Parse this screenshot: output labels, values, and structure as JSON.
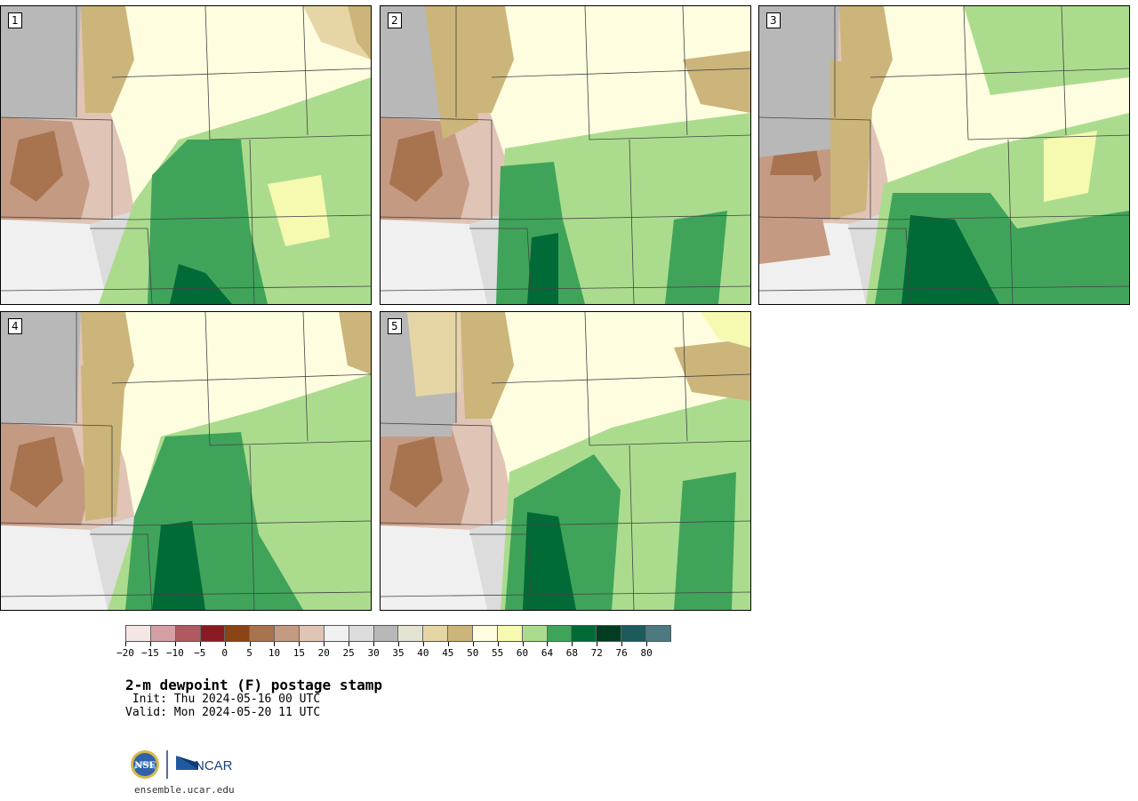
{
  "panels": [
    {
      "label": "1"
    },
    {
      "label": "2"
    },
    {
      "label": "3"
    },
    {
      "label": "4"
    },
    {
      "label": "5"
    }
  ],
  "colorbar": {
    "colors": [
      "#f5e6e6",
      "#d4a0a4",
      "#b05a60",
      "#8a1a22",
      "#8b4515",
      "#a8734f",
      "#c49a82",
      "#e0c4b6",
      "#f0f0f0",
      "#dcdcdc",
      "#b8b8b8",
      "#e4e2d0",
      "#e6d6a6",
      "#cbb57a",
      "#fefde0",
      "#f6f9b0",
      "#abdc8e",
      "#3fa45a",
      "#006b36",
      "#003d22",
      "#1d5a5a",
      "#4c7a80"
    ],
    "tick_labels": [
      "−20",
      "−15",
      "−10",
      "−5",
      "0",
      "5",
      "10",
      "15",
      "20",
      "25",
      "30",
      "35",
      "40",
      "45",
      "50",
      "55",
      "60",
      "64",
      "68",
      "72",
      "76",
      "80"
    ]
  },
  "title": "2-m dewpoint (F) postage stamp",
  "init": " Init: Thu 2024-05-16 00 UTC",
  "valid": "Valid: Mon 2024-05-20 11 UTC",
  "logo": {
    "left_text": "NSF",
    "right_text": "NCAR"
  },
  "url": "ensemble.ucar.edu"
}
